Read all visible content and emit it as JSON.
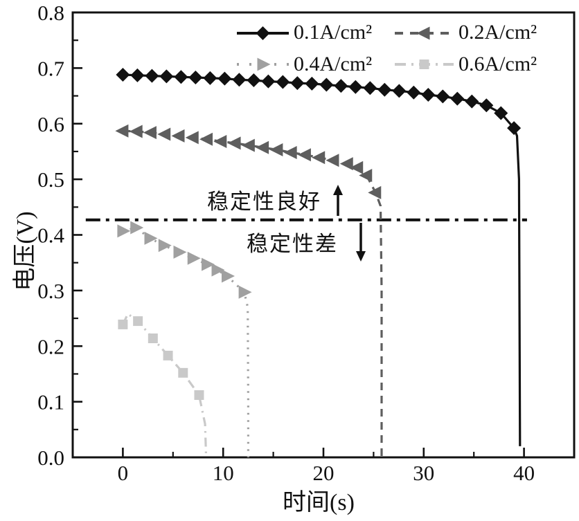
{
  "figure": {
    "x_axis_label": "时间(s)",
    "y_axis_label": "电压(V)"
  },
  "legend": {
    "items": [
      {
        "label": "0.1A/cm²"
      },
      {
        "label": "0.2A/cm²"
      },
      {
        "label": "0.4A/cm²"
      },
      {
        "label": "0.6A/cm²"
      }
    ]
  },
  "annotations": {
    "above_line": "稳定性良好",
    "below_line": "稳定性差"
  },
  "chart_data": {
    "type": "line",
    "title": "",
    "xlabel": "时间(s)",
    "ylabel": "电压(V)",
    "xlim": [
      -5,
      45
    ],
    "ylim": [
      0,
      0.8
    ],
    "grid": false,
    "legend_position": "top-inside",
    "x_tick_values": [
      0,
      10,
      20,
      30,
      40
    ],
    "x_tick_labels": [
      "0",
      "10",
      "20",
      "30",
      "40"
    ],
    "x_minor_ticks": [
      5,
      15,
      25,
      35
    ],
    "y_tick_values": [
      0,
      0.1,
      0.2,
      0.3,
      0.4,
      0.5,
      0.6,
      0.7,
      0.8
    ],
    "y_tick_labels": [
      "0.0",
      "0.1",
      "0.2",
      "0.3",
      "0.4",
      "0.5",
      "0.6",
      "0.7",
      "0.8"
    ],
    "y_minor_ticks": [
      0.05,
      0.15,
      0.25,
      0.35,
      0.45,
      0.55,
      0.65,
      0.75
    ],
    "threshold_line": {
      "voltage": 0.427,
      "t_start": -3.7,
      "t_end": 40.3,
      "style": "dashdot",
      "color": "#111111",
      "label_above": "稳定性良好",
      "label_below": "稳定性差"
    },
    "series": [
      {
        "name": "0.1A/cm²",
        "color": "#111111",
        "line_style": "solid",
        "marker": "diamond",
        "failure_time": 39.6,
        "marker_points": [
          [
            0,
            0.688
          ],
          [
            1.45,
            0.687
          ],
          [
            2.9,
            0.686
          ],
          [
            4.35,
            0.685
          ],
          [
            5.8,
            0.684
          ],
          [
            7.25,
            0.683
          ],
          [
            8.7,
            0.682
          ],
          [
            10.15,
            0.681
          ],
          [
            11.6,
            0.679
          ],
          [
            13.05,
            0.678
          ],
          [
            14.5,
            0.676
          ],
          [
            15.95,
            0.675
          ],
          [
            17.4,
            0.673
          ],
          [
            18.85,
            0.672
          ],
          [
            20.3,
            0.67
          ],
          [
            21.75,
            0.668
          ],
          [
            23.2,
            0.666
          ],
          [
            24.65,
            0.664
          ],
          [
            26.1,
            0.661
          ],
          [
            27.55,
            0.659
          ],
          [
            29.0,
            0.656
          ],
          [
            30.45,
            0.652
          ],
          [
            31.9,
            0.649
          ],
          [
            33.35,
            0.645
          ],
          [
            34.8,
            0.64
          ],
          [
            36.25,
            0.633
          ],
          [
            37.7,
            0.619
          ],
          [
            39.0,
            0.592
          ]
        ],
        "line_points": [
          [
            0,
            0.688
          ],
          [
            1.45,
            0.687
          ],
          [
            2.9,
            0.686
          ],
          [
            4.35,
            0.685
          ],
          [
            5.8,
            0.684
          ],
          [
            7.25,
            0.683
          ],
          [
            8.7,
            0.682
          ],
          [
            10.15,
            0.681
          ],
          [
            11.6,
            0.679
          ],
          [
            13.05,
            0.678
          ],
          [
            14.5,
            0.676
          ],
          [
            15.95,
            0.675
          ],
          [
            17.4,
            0.673
          ],
          [
            18.85,
            0.672
          ],
          [
            20.3,
            0.67
          ],
          [
            21.75,
            0.668
          ],
          [
            23.2,
            0.666
          ],
          [
            24.65,
            0.664
          ],
          [
            26.1,
            0.661
          ],
          [
            27.55,
            0.659
          ],
          [
            29.0,
            0.656
          ],
          [
            30.45,
            0.652
          ],
          [
            31.9,
            0.649
          ],
          [
            33.35,
            0.645
          ],
          [
            34.8,
            0.64
          ],
          [
            36.25,
            0.633
          ],
          [
            37.7,
            0.619
          ],
          [
            39.0,
            0.592
          ],
          [
            39.3,
            0.578
          ],
          [
            39.5,
            0.5
          ],
          [
            39.6,
            0.02
          ]
        ]
      },
      {
        "name": "0.2A/cm²",
        "color": "#5e5e5e",
        "line_style": "dashed",
        "marker": "triangle-left",
        "failure_time": 25.8,
        "marker_points": [
          [
            0,
            0.587
          ],
          [
            1.4,
            0.586
          ],
          [
            2.8,
            0.584
          ],
          [
            4.2,
            0.581
          ],
          [
            5.6,
            0.578
          ],
          [
            7.0,
            0.575
          ],
          [
            8.4,
            0.572
          ],
          [
            9.8,
            0.568
          ],
          [
            11.2,
            0.565
          ],
          [
            12.6,
            0.561
          ],
          [
            14.0,
            0.557
          ],
          [
            15.4,
            0.553
          ],
          [
            16.8,
            0.548
          ],
          [
            18.2,
            0.544
          ],
          [
            19.6,
            0.539
          ],
          [
            21.0,
            0.534
          ],
          [
            22.4,
            0.528
          ],
          [
            23.4,
            0.521
          ],
          [
            24.3,
            0.507
          ],
          [
            25.2,
            0.476
          ]
        ],
        "line_points": [
          [
            0,
            0.587
          ],
          [
            1.4,
            0.586
          ],
          [
            2.8,
            0.584
          ],
          [
            4.2,
            0.581
          ],
          [
            5.6,
            0.578
          ],
          [
            7.0,
            0.575
          ],
          [
            8.4,
            0.572
          ],
          [
            9.8,
            0.568
          ],
          [
            11.2,
            0.565
          ],
          [
            12.6,
            0.561
          ],
          [
            14.0,
            0.557
          ],
          [
            15.4,
            0.553
          ],
          [
            16.8,
            0.548
          ],
          [
            18.2,
            0.544
          ],
          [
            19.6,
            0.539
          ],
          [
            21.0,
            0.534
          ],
          [
            22.4,
            0.528
          ],
          [
            23.4,
            0.521
          ],
          [
            24.3,
            0.507
          ],
          [
            25.2,
            0.476
          ],
          [
            25.7,
            0.452
          ],
          [
            25.8,
            0.3
          ],
          [
            25.8,
            0.0
          ]
        ]
      },
      {
        "name": "0.4A/cm²",
        "color": "#a0a0a0",
        "line_style": "dotted",
        "marker": "triangle-right",
        "failure_time": 12.5,
        "marker_points": [
          [
            0,
            0.407
          ],
          [
            1.3,
            0.413
          ],
          [
            2.7,
            0.394
          ],
          [
            4.1,
            0.381
          ],
          [
            5.6,
            0.369
          ],
          [
            7.0,
            0.358
          ],
          [
            8.4,
            0.347
          ],
          [
            9.4,
            0.337
          ],
          [
            10.4,
            0.326
          ],
          [
            12.1,
            0.297
          ]
        ],
        "line_points": [
          [
            0,
            0.407
          ],
          [
            1.3,
            0.413
          ],
          [
            2.7,
            0.394
          ],
          [
            4.1,
            0.381
          ],
          [
            5.6,
            0.369
          ],
          [
            7.0,
            0.358
          ],
          [
            8.4,
            0.347
          ],
          [
            9.4,
            0.337
          ],
          [
            10.4,
            0.326
          ],
          [
            12.1,
            0.297
          ],
          [
            12.45,
            0.27
          ],
          [
            12.5,
            0.1
          ],
          [
            12.5,
            0.0
          ]
        ]
      },
      {
        "name": "0.6A/cm²",
        "color": "#c9c9c9",
        "line_style": "dashdot",
        "marker": "square",
        "failure_time": 8.3,
        "marker_points": [
          [
            0,
            0.239
          ],
          [
            1.5,
            0.245
          ],
          [
            3.0,
            0.214
          ],
          [
            4.5,
            0.183
          ],
          [
            6.0,
            0.152
          ],
          [
            7.6,
            0.112
          ]
        ],
        "line_points": [
          [
            0,
            0.239
          ],
          [
            0.5,
            0.258
          ],
          [
            1.5,
            0.245
          ],
          [
            3.0,
            0.214
          ],
          [
            4.5,
            0.183
          ],
          [
            6.0,
            0.152
          ],
          [
            7.6,
            0.112
          ],
          [
            8.2,
            0.06
          ],
          [
            8.3,
            0.0
          ]
        ]
      }
    ]
  }
}
